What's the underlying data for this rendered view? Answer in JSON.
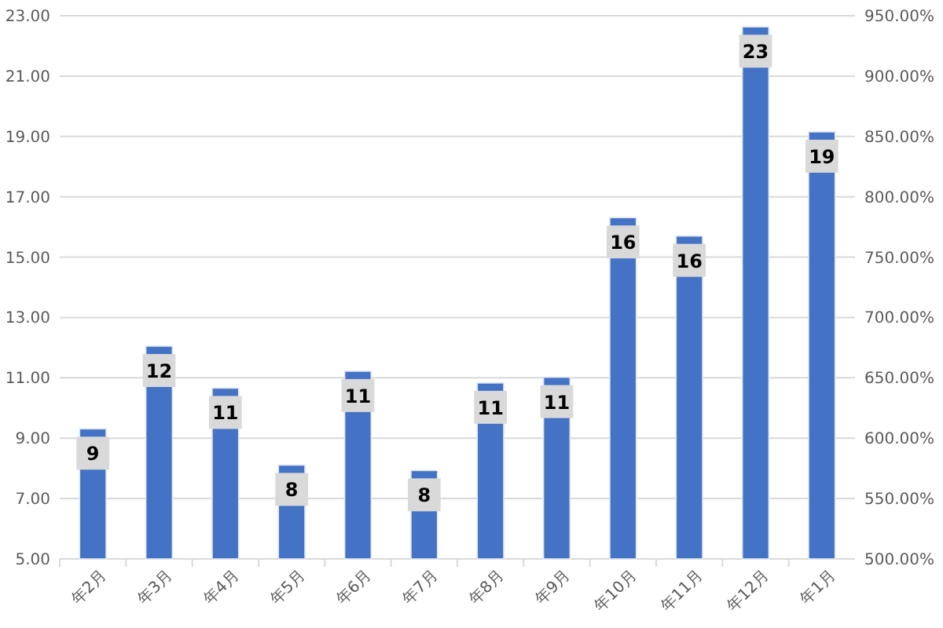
{
  "chart_data": {
    "type": "bar",
    "categories": [
      "年2月",
      "年3月",
      "年4月",
      "年5月",
      "年6月",
      "年7月",
      "年8月",
      "年9月",
      "年10月",
      "年11月",
      "年12月",
      "年1月"
    ],
    "values": [
      9.31,
      12.05,
      10.66,
      8.11,
      11.22,
      7.93,
      10.83,
      11.02,
      16.31,
      15.7,
      22.63,
      19.15
    ],
    "value_labels": [
      "9",
      "12",
      "11",
      "8",
      "11",
      "8",
      "11",
      "11",
      "16",
      "16",
      "23",
      "19"
    ],
    "color": "#4472c4",
    "ylim": [
      5,
      23
    ],
    "yticks": [
      {
        "value": 5,
        "label": "5.00"
      },
      {
        "value": 7,
        "label": "7.00"
      },
      {
        "value": 9,
        "label": "9.00"
      },
      {
        "value": 11,
        "label": "11.00"
      },
      {
        "value": 13,
        "label": "13.00"
      },
      {
        "value": 15,
        "label": "15.00"
      },
      {
        "value": 17,
        "label": "17.00"
      },
      {
        "value": 19,
        "label": "19.00"
      },
      {
        "value": 21,
        "label": "21.00"
      },
      {
        "value": 23,
        "label": "23.00"
      }
    ],
    "y2lim": [
      500,
      950
    ],
    "y2ticks": [
      {
        "value": 500,
        "label": "500.00%"
      },
      {
        "value": 550,
        "label": "550.00%"
      },
      {
        "value": 600,
        "label": "600.00%"
      },
      {
        "value": 650,
        "label": "650.00%"
      },
      {
        "value": 700,
        "label": "700.00%"
      },
      {
        "value": 750,
        "label": "750.00%"
      },
      {
        "value": 800,
        "label": "800.00%"
      },
      {
        "value": 850,
        "label": "850.00%"
      },
      {
        "value": 900,
        "label": "900.00%"
      },
      {
        "value": 950,
        "label": "950.00%"
      }
    ],
    "grid": "y"
  }
}
